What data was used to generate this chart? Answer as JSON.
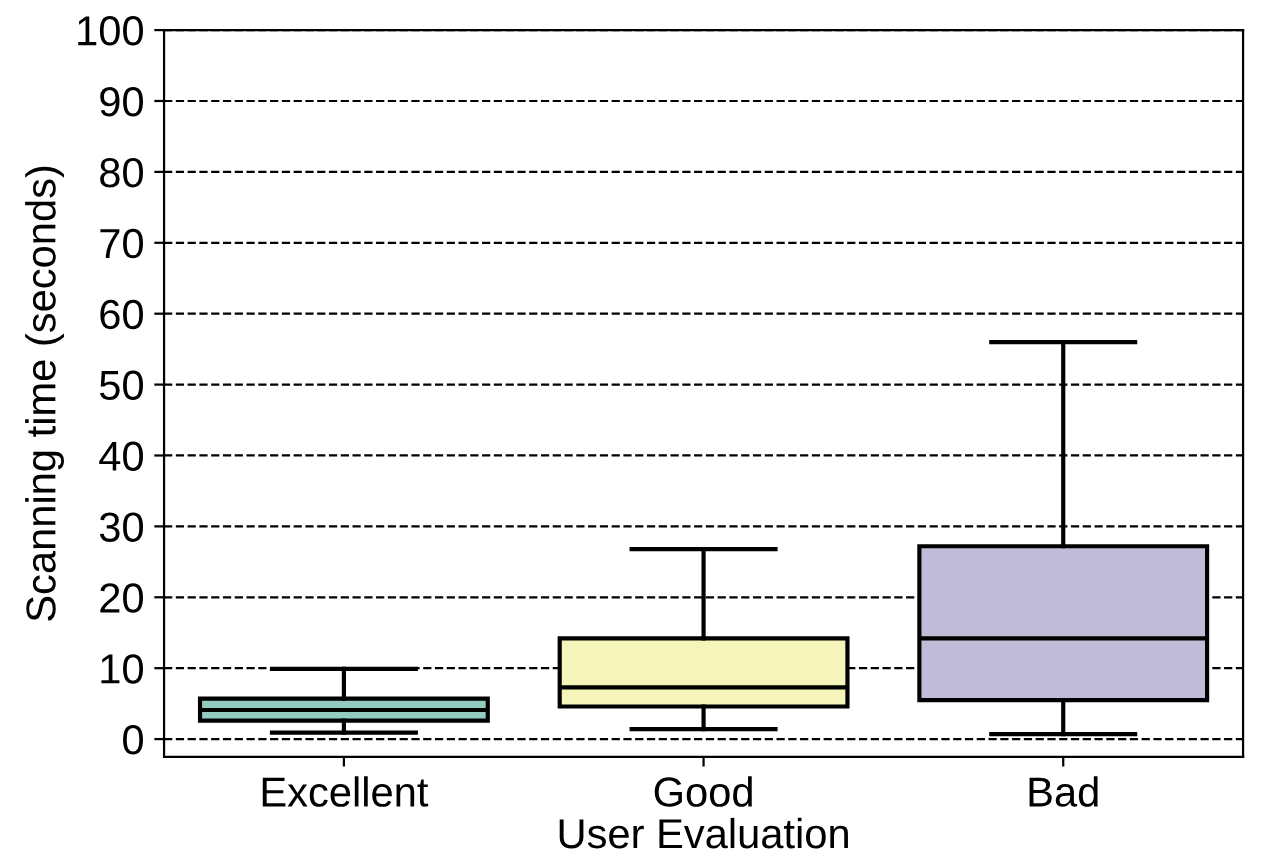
{
  "chart_data": {
    "type": "box",
    "xlabel": "User Evaluation",
    "ylabel": "Scanning time (seconds)",
    "categories": [
      "Excellent",
      "Good",
      "Bad"
    ],
    "colors": [
      "#93cbc1",
      "#f5f5bb",
      "#c0bbd6"
    ],
    "boxes": [
      {
        "low": 0.9,
        "q1": 2.6,
        "median": 4.1,
        "q3": 5.7,
        "high": 9.9
      },
      {
        "low": 1.4,
        "q1": 4.6,
        "median": 7.3,
        "q3": 14.2,
        "high": 26.8
      },
      {
        "low": 0.7,
        "q1": 5.5,
        "median": 14.2,
        "q3": 27.2,
        "high": 56
      }
    ],
    "ylim": [
      -2.5,
      100
    ],
    "yticks": [
      0,
      10,
      20,
      30,
      40,
      50,
      60,
      70,
      80,
      90,
      100
    ],
    "grid": "y"
  }
}
